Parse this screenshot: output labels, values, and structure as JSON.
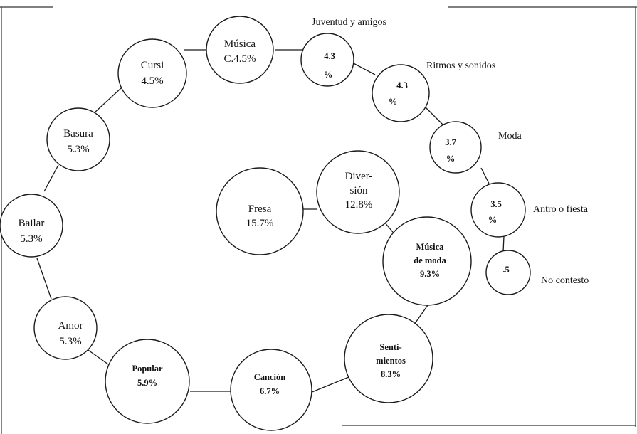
{
  "diagram": {
    "nodes": {
      "musica_c": {
        "line1": "Música",
        "line2": "C.4.5%"
      },
      "cursi": {
        "line1": "Cursi",
        "line2": "4.5%"
      },
      "basura": {
        "line1": "Basura",
        "line2": "5.3%"
      },
      "bailar": {
        "line1": "Bailar",
        "line2": "5.3%"
      },
      "amor": {
        "line1": "Amor",
        "line2": "5.3%"
      },
      "popular": {
        "line1": "Popular",
        "line2": "5.9%"
      },
      "cancion": {
        "line1": "Canción",
        "line2": "6.7%"
      },
      "sentimientos": {
        "line1": "Senti-",
        "line2": "mientos",
        "line3": "8.3%"
      },
      "musica_moda": {
        "line1": "Música",
        "line2": "de moda",
        "line3": "9.3%"
      },
      "diversion": {
        "line1": "Diver-",
        "line2": "sión",
        "line3": "12.8%"
      },
      "fresa": {
        "line1": "Fresa",
        "line2": "15.7%"
      },
      "juventud": {
        "line1": "4.3",
        "line2": "%"
      },
      "ritmos": {
        "line1": "4.3",
        "line2": "%"
      },
      "moda": {
        "line1": "3.7",
        "line2": "%"
      },
      "antro": {
        "line1": "3.5",
        "line2": "%"
      },
      "no_contesto": {
        "line1": ".5"
      }
    },
    "side_labels": {
      "juventud": "Juventud y amigos",
      "ritmos": "Ritmos y sonidos",
      "moda": "Moda",
      "antro": "Antro o fiesta",
      "no_contesto": "No contesto"
    }
  }
}
